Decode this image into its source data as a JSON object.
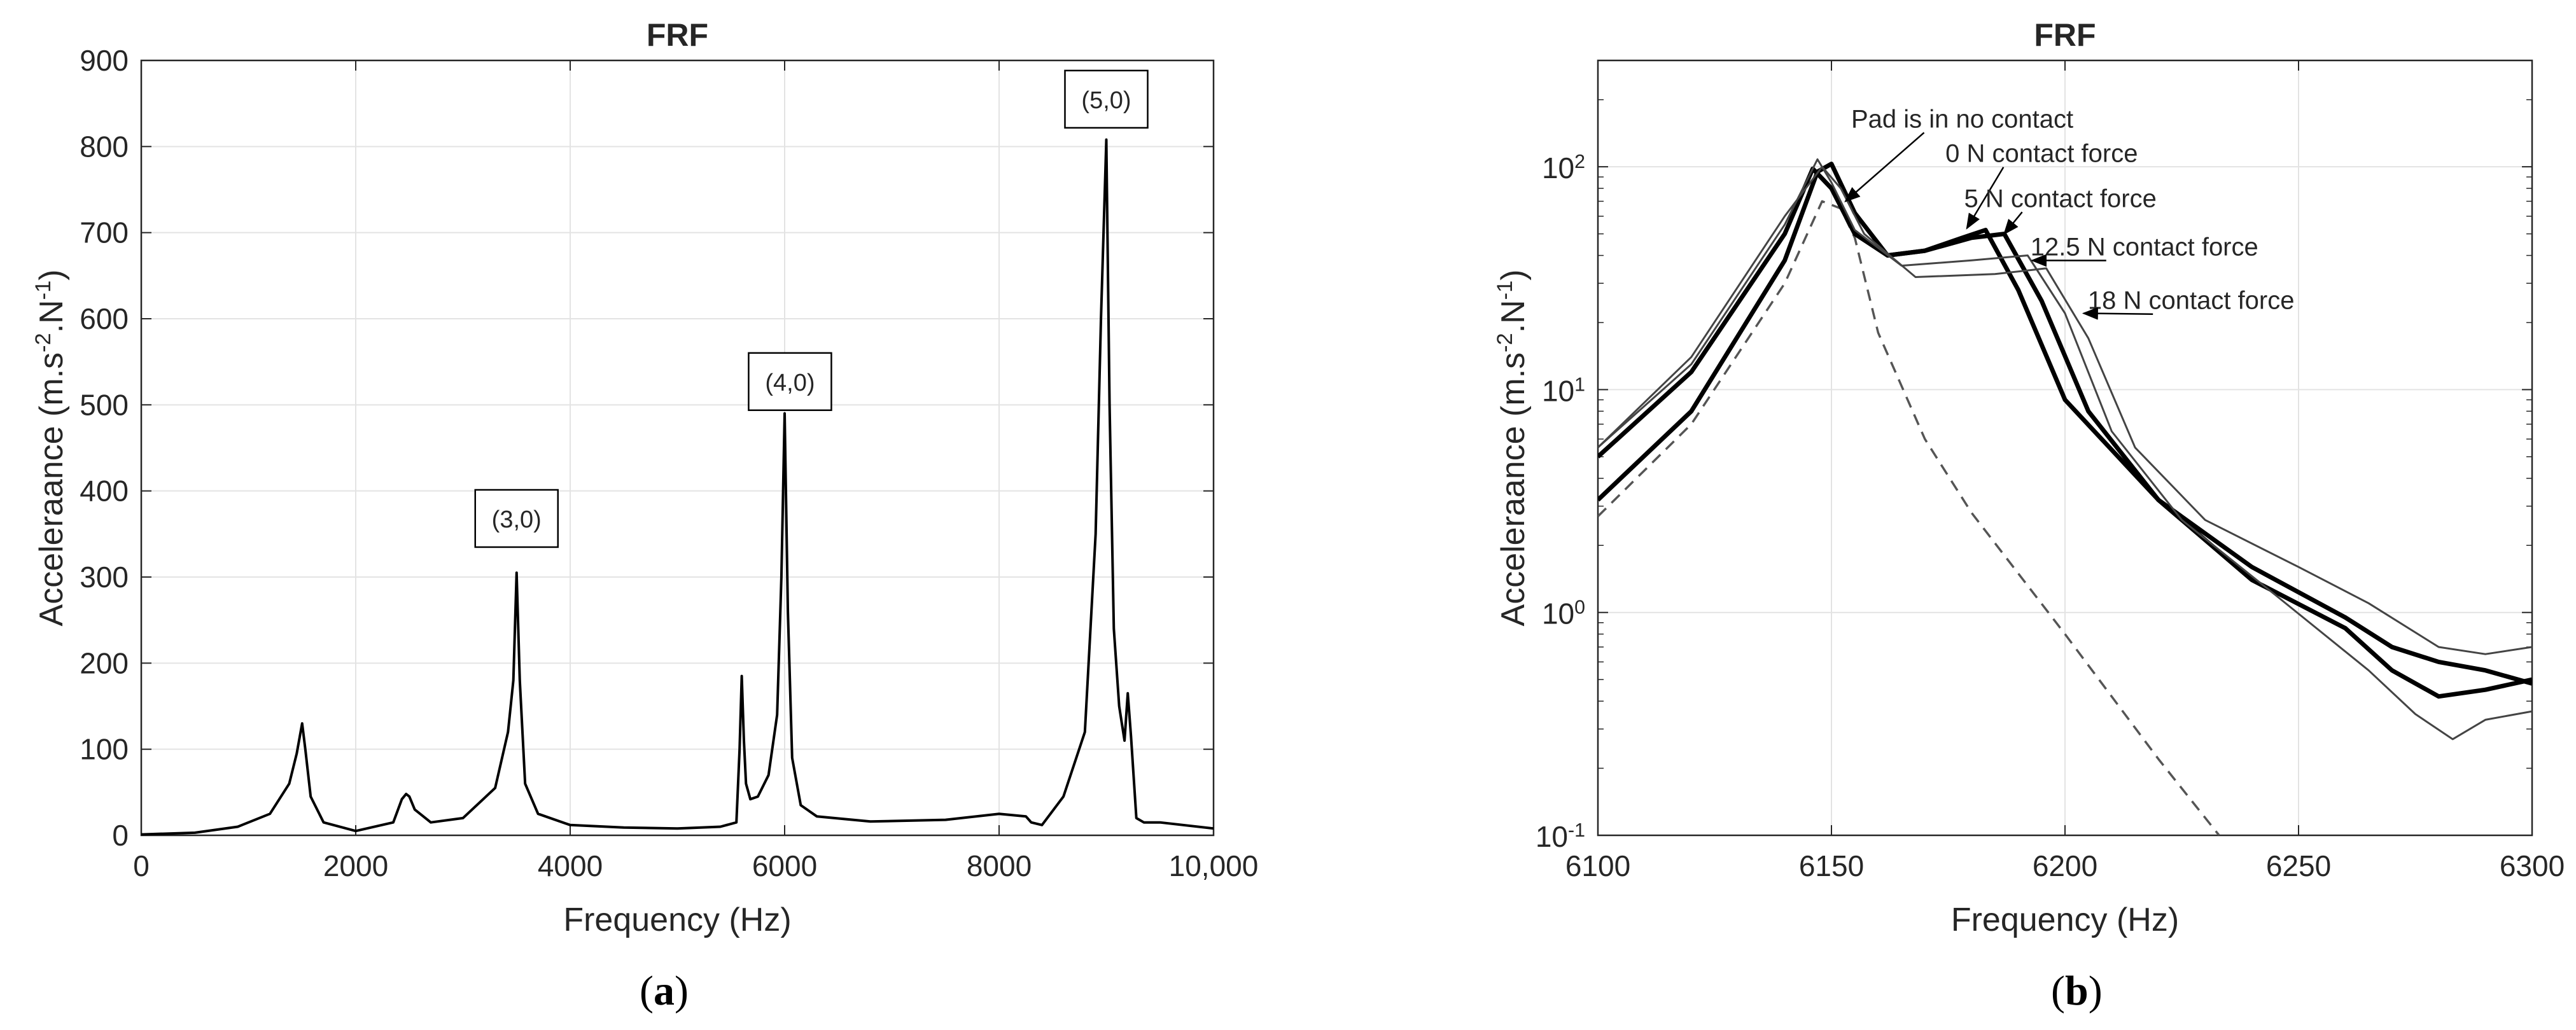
{
  "figure_labels": {
    "a": "a",
    "b": "b"
  },
  "chart_data": [
    {
      "type": "line",
      "panel": "a",
      "title": "FRF",
      "xlabel": "Frequency (Hz)",
      "ylabel": {
        "base": "Acceleraance (m.s",
        "sup1": "-2",
        "mid": ".N",
        "sup2": "-1",
        "tail": ")"
      },
      "xlim": [
        0,
        10000
      ],
      "ylim": [
        0,
        900
      ],
      "xticks": [
        0,
        2000,
        4000,
        6000,
        8000,
        10000
      ],
      "xtick_labels": [
        "0",
        "2000",
        "4000",
        "6000",
        "8000",
        "10,000"
      ],
      "yticks": [
        0,
        100,
        200,
        300,
        400,
        500,
        600,
        700,
        800,
        900
      ],
      "ytick_labels": [
        "0",
        "100",
        "200",
        "300",
        "400",
        "500",
        "600",
        "700",
        "800",
        "900"
      ],
      "grid": true,
      "series": [
        {
          "name": "FRF",
          "x": [
            0,
            500,
            900,
            1200,
            1380,
            1450,
            1500,
            1530,
            1580,
            1700,
            2000,
            2350,
            2430,
            2470,
            2500,
            2550,
            2700,
            3000,
            3300,
            3420,
            3470,
            3500,
            3530,
            3580,
            3700,
            4000,
            4500,
            5000,
            5400,
            5550,
            5580,
            5600,
            5620,
            5640,
            5680,
            5750,
            5850,
            5930,
            5970,
            6000,
            6030,
            6070,
            6150,
            6300,
            6800,
            7500,
            8000,
            8250,
            8300,
            8400,
            8600,
            8800,
            8900,
            8950,
            9000,
            9030,
            9070,
            9120,
            9170,
            9200,
            9230,
            9280,
            9350,
            9500,
            10000
          ],
          "y": [
            1,
            3,
            10,
            25,
            60,
            95,
            130,
            100,
            45,
            15,
            5,
            15,
            42,
            48,
            45,
            30,
            15,
            20,
            55,
            120,
            180,
            305,
            180,
            60,
            25,
            12,
            9,
            8,
            10,
            15,
            100,
            185,
            110,
            60,
            42,
            45,
            70,
            140,
            300,
            490,
            260,
            90,
            35,
            22,
            16,
            18,
            25,
            22,
            15,
            12,
            45,
            120,
            350,
            600,
            808,
            500,
            240,
            150,
            110,
            165,
            115,
            20,
            15,
            15,
            8
          ]
        }
      ],
      "annotations": [
        {
          "text": "(3,0)",
          "x": 3500,
          "y": 368
        },
        {
          "text": "(4,0)",
          "x": 6050,
          "y": 527
        },
        {
          "text": "(5,0)",
          "x": 9000,
          "y": 855
        }
      ]
    },
    {
      "type": "line",
      "panel": "b",
      "title": "FRF",
      "xlabel": "Frequency (Hz)",
      "ylabel": {
        "base": "Acceleraance (m.s",
        "sup1": "-2",
        "mid": ".N",
        "sup2": "-1",
        "tail": ")"
      },
      "xlim": [
        6100,
        6300
      ],
      "ylim": [
        0.1,
        300
      ],
      "yscale": "log",
      "xticks": [
        6100,
        6150,
        6200,
        6250,
        6300
      ],
      "xtick_labels": [
        "6100",
        "6150",
        "6200",
        "6250",
        "6300"
      ],
      "yticks": [
        0.1,
        1,
        10,
        100
      ],
      "ytick_labels": [
        {
          "base": "10",
          "exp": "-1"
        },
        {
          "base": "10",
          "exp": "0"
        },
        {
          "base": "10",
          "exp": "1"
        },
        {
          "base": "10",
          "exp": "2"
        }
      ],
      "grid": true,
      "series": [
        {
          "name": "Pad is in no contact",
          "style": "dashed",
          "x": [
            6100,
            6120,
            6140,
            6148,
            6152,
            6155,
            6160,
            6170,
            6180,
            6200,
            6220,
            6233
          ],
          "y": [
            2.7,
            7,
            30,
            70,
            65,
            48,
            18,
            6,
            2.8,
            0.8,
            0.22,
            0.1
          ]
        },
        {
          "name": "0 N contact force",
          "style": "bold",
          "x": [
            6100,
            6120,
            6140,
            6147,
            6150,
            6155,
            6162,
            6170,
            6178,
            6183,
            6190,
            6200,
            6220,
            6240,
            6260,
            6270,
            6280,
            6290,
            6300
          ],
          "y": [
            3.2,
            8,
            38,
            95,
            103,
            62,
            40,
            42,
            48,
            52,
            28,
            9,
            3.2,
            1.6,
            0.95,
            0.7,
            0.6,
            0.55,
            0.48
          ]
        },
        {
          "name": "5 N contact force",
          "style": "bold",
          "x": [
            6100,
            6120,
            6140,
            6146,
            6150,
            6155,
            6162,
            6170,
            6180,
            6187,
            6195,
            6205,
            6220,
            6240,
            6260,
            6270,
            6280,
            6290,
            6300
          ],
          "y": [
            5,
            12,
            50,
            98,
            80,
            50,
            40,
            42,
            48,
            50,
            25,
            8,
            3.2,
            1.4,
            0.85,
            0.55,
            0.42,
            0.45,
            0.5
          ]
        },
        {
          "name": "12.5 N contact force",
          "style": "thin",
          "x": [
            6100,
            6120,
            6140,
            6147,
            6150,
            6155,
            6165,
            6180,
            6192,
            6200,
            6210,
            6225,
            6245,
            6265,
            6275,
            6283,
            6290,
            6300
          ],
          "y": [
            5.5,
            13,
            55,
            108,
            85,
            52,
            36,
            38,
            40,
            22,
            6.5,
            2.6,
            1.2,
            0.55,
            0.35,
            0.27,
            0.33,
            0.36
          ]
        },
        {
          "name": "18 N contact force",
          "style": "thin",
          "x": [
            6100,
            6120,
            6140,
            6148,
            6152,
            6157,
            6168,
            6185,
            6196,
            6205,
            6215,
            6230,
            6250,
            6265,
            6280,
            6290,
            6300
          ],
          "y": [
            5.5,
            14,
            60,
            100,
            80,
            50,
            32,
            33,
            35,
            17,
            5.5,
            2.6,
            1.6,
            1.1,
            0.7,
            0.65,
            0.7
          ]
        }
      ],
      "annotations": [
        {
          "text": "Pad is in no contact",
          "x": 6178,
          "y": 150,
          "arrow_x": 6153,
          "arrow_y": 70
        },
        {
          "text": "0 N contact force",
          "x": 6195,
          "y": 105,
          "arrow_x": 6179,
          "arrow_y": 53
        },
        {
          "text": "5 N contact force",
          "x": 6199,
          "y": 66,
          "arrow_x": 6187,
          "arrow_y": 50
        },
        {
          "text": "12.5 N contact force",
          "x": 6217,
          "y": 40,
          "arrow_x": 6193,
          "arrow_y": 38
        },
        {
          "text": "18 N contact force",
          "x": 6227,
          "y": 23,
          "arrow_x": 6204,
          "arrow_y": 22
        }
      ]
    }
  ]
}
